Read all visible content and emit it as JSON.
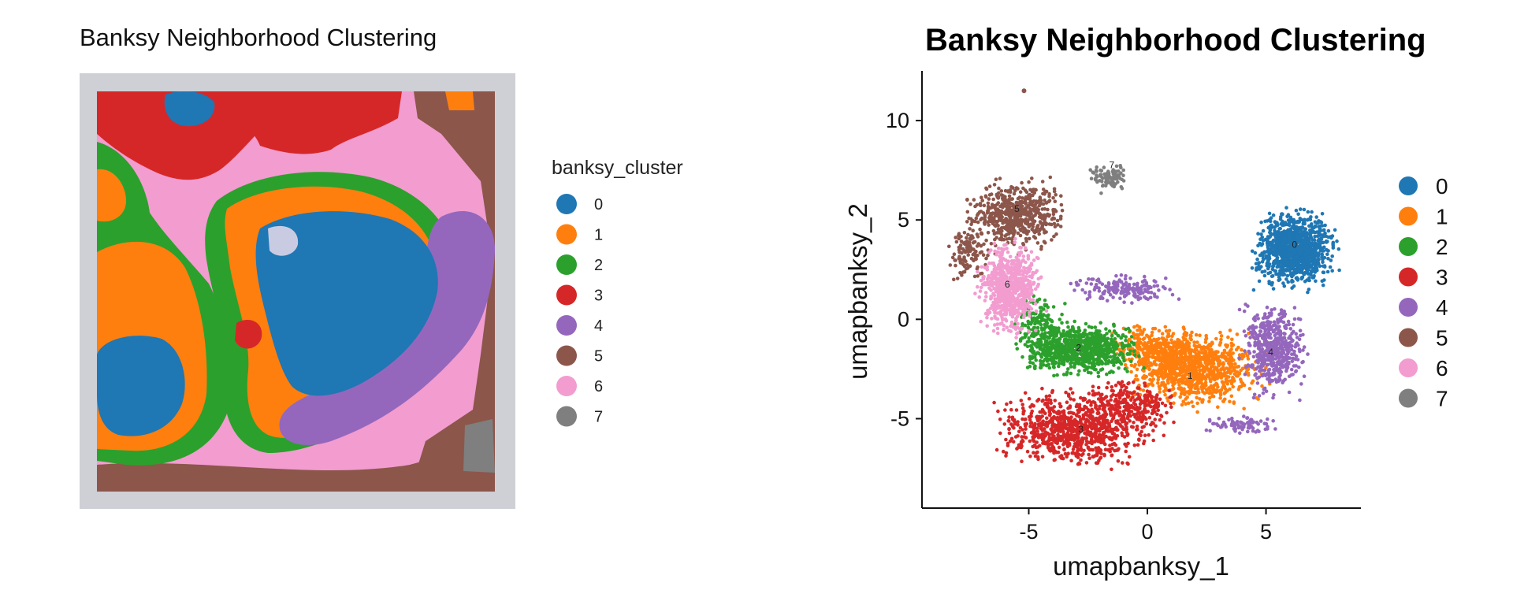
{
  "colors": {
    "0": "#1f77b4",
    "1": "#ff7f0e",
    "2": "#2ca02c",
    "3": "#d62728",
    "4": "#9467bd",
    "5": "#8c564b",
    "6": "#f29cd0",
    "7": "#7f7f7f",
    "tissue_background": "#cfcfd6"
  },
  "chart_data": [
    {
      "type": "scatter",
      "title": "Banksy Neighborhood Clustering",
      "legend": {
        "title": "banksy_cluster",
        "placement": "right",
        "entries": [
          "0",
          "1",
          "2",
          "3",
          "4",
          "5",
          "6",
          "7"
        ]
      },
      "axes_shown": false
    },
    {
      "type": "scatter",
      "title": "Banksy Neighborhood Clustering",
      "xlabel": "umapbanksy_1",
      "ylabel": "umapbanksy_2",
      "xlim": [
        -9.5,
        9
      ],
      "ylim": [
        -9.5,
        12.5
      ],
      "xticks": [
        -5,
        0,
        5
      ],
      "yticks": [
        -5,
        0,
        5,
        10
      ],
      "xtick_labels": [
        "-5",
        "0",
        "5"
      ],
      "ytick_labels": [
        "-5",
        "0",
        "5",
        "10"
      ],
      "legend": {
        "placement": "right",
        "entries": [
          "0",
          "1",
          "2",
          "3",
          "4",
          "5",
          "6",
          "7"
        ]
      },
      "clusters": [
        {
          "label": "0",
          "center": [
            6.2,
            3.6
          ]
        },
        {
          "label": "1",
          "center": [
            1.8,
            -3.0
          ]
        },
        {
          "label": "2",
          "center": [
            -2.9,
            -1.6
          ]
        },
        {
          "label": "3",
          "center": [
            -2.8,
            -5.7
          ]
        },
        {
          "label": "4",
          "center": [
            5.2,
            -1.8
          ]
        },
        {
          "label": "5",
          "center": [
            -5.5,
            5.4
          ]
        },
        {
          "label": "6",
          "center": [
            -5.9,
            1.6
          ]
        },
        {
          "label": "7",
          "center": [
            -1.5,
            7.6
          ]
        }
      ]
    }
  ]
}
